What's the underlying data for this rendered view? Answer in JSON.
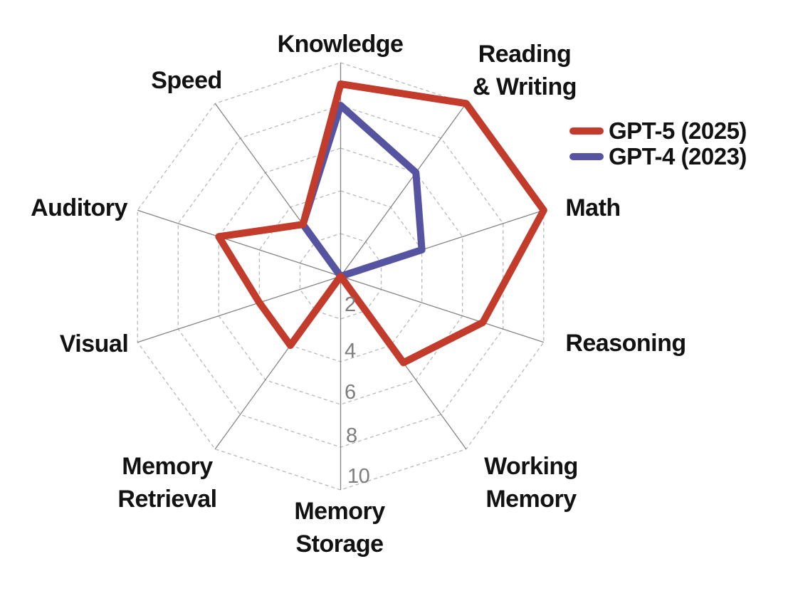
{
  "chart_data": {
    "type": "radar",
    "title": "",
    "categories": [
      "Knowledge",
      "Reading\n& Writing",
      "Math",
      "Reasoning",
      "Working\nMemory",
      "Memory\nStorage",
      "Memory\nRetrieval",
      "Visual",
      "Auditory",
      "Speed"
    ],
    "series": [
      {
        "name": "GPT-5 (2025)",
        "color": "#C23B2B",
        "values": [
          9,
          10,
          10,
          7,
          5,
          0,
          4,
          4,
          6,
          3
        ]
      },
      {
        "name": "GPT-4 (2023)",
        "color": "#5654A0",
        "values": [
          8,
          6,
          4,
          0,
          0,
          0,
          0,
          0,
          0,
          3
        ]
      }
    ],
    "ticks": [
      2,
      4,
      6,
      8,
      10
    ],
    "axis_range": [
      0,
      10
    ],
    "grid": {
      "rings": "dashed-decagon",
      "axis_color": "#858585",
      "ring_color": "#b8b8b8",
      "tick_color": "#7d7d7d"
    },
    "legend_position": "top-right"
  }
}
